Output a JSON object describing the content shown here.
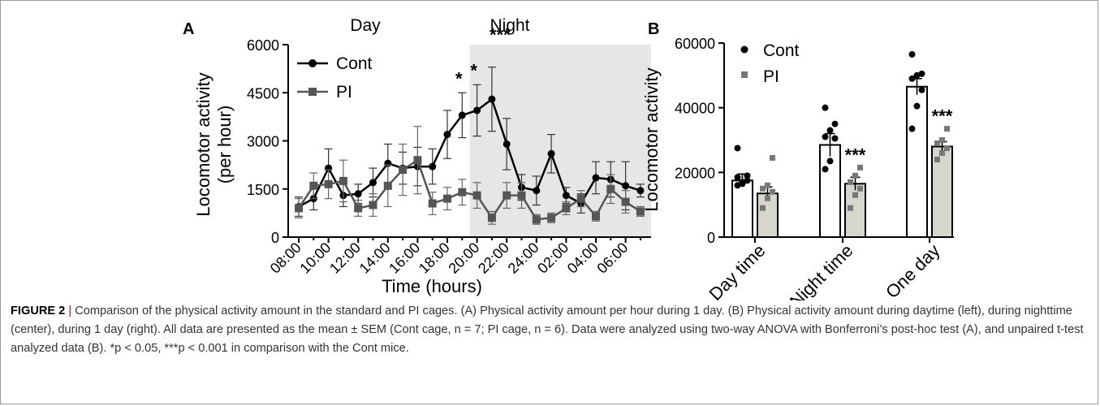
{
  "chart_data": [
    {
      "panel": "A",
      "type": "line",
      "ylabel_line1": "Locomotor activity",
      "ylabel_line2": "(per hour)",
      "xlabel": "Time (hours)",
      "ylim": [
        0,
        6000
      ],
      "yticks": [
        "0",
        "1500",
        "3000",
        "4500",
        "6000"
      ],
      "phase_labels": [
        "Day",
        "Night"
      ],
      "x_categories": [
        "08:00",
        "09:00",
        "10:00",
        "11:00",
        "12:00",
        "13:00",
        "14:00",
        "15:00",
        "16:00",
        "17:00",
        "18:00",
        "19:00",
        "20:00",
        "21:00",
        "22:00",
        "23:00",
        "24:00",
        "01:00",
        "02:00",
        "03:00",
        "04:00",
        "05:00",
        "06:00",
        "07:00"
      ],
      "xtick_labels": [
        "08:00",
        "10:00",
        "12:00",
        "14:00",
        "16:00",
        "18:00",
        "20:00",
        "22:00",
        "24:00",
        "02:00",
        "04:00",
        "06:00"
      ],
      "night_start_index": 12,
      "series": [
        {
          "name": "Cont",
          "color": "#000000",
          "marker": "circle",
          "values": [
            950,
            1200,
            2150,
            1300,
            1350,
            1700,
            2300,
            2150,
            2200,
            2200,
            3200,
            3800,
            3950,
            4300,
            2900,
            1550,
            1450,
            2600,
            1300,
            1050,
            1850,
            1800,
            1600,
            1450
          ],
          "errors": [
            300,
            350,
            600,
            350,
            300,
            450,
            600,
            500,
            600,
            550,
            750,
            700,
            800,
            1000,
            800,
            400,
            450,
            600,
            250,
            300,
            500,
            550,
            750,
            200
          ]
        },
        {
          "name": "PI",
          "color": "#555555",
          "marker": "square",
          "values": [
            900,
            1600,
            1650,
            1750,
            900,
            1000,
            1600,
            2100,
            2400,
            1050,
            1200,
            1400,
            1300,
            600,
            1300,
            1300,
            550,
            600,
            900,
            1200,
            650,
            1500,
            1100,
            800
          ],
          "errors": [
            300,
            400,
            450,
            650,
            250,
            350,
            650,
            800,
            1050,
            350,
            350,
            400,
            400,
            200,
            400,
            400,
            150,
            150,
            200,
            250,
            150,
            450,
            350,
            150
          ]
        }
      ],
      "significance": [
        {
          "index": 11,
          "label": "*"
        },
        {
          "index": 12,
          "label": "*"
        },
        {
          "index": 13,
          "label": "***"
        }
      ]
    },
    {
      "panel": "B",
      "type": "bar",
      "ylabel": "Locomotor activity",
      "ylim": [
        0,
        60000
      ],
      "yticks": [
        "0",
        "20000",
        "40000",
        "60000"
      ],
      "categories": [
        "Day time",
        "Night time",
        "One day"
      ],
      "series": [
        {
          "name": "Cont",
          "color": "#ffffff",
          "point_color": "#000000",
          "values": [
            17500,
            28500,
            46500
          ],
          "errors": [
            2000,
            3500,
            2500
          ],
          "points": [
            [
              16000,
              17000,
              17500,
              18500,
              16500,
              19000,
              27500
            ],
            [
              21000,
              23500,
              30500,
              31000,
              33000,
              35000,
              40000
            ],
            [
              33500,
              40500,
              45500,
              49000,
              50000,
              50500,
              56500
            ]
          ]
        },
        {
          "name": "PI",
          "color": "#d6d6cc",
          "point_color": "#777777",
          "values": [
            13500,
            16500,
            28000
          ],
          "errors": [
            2000,
            2000,
            1500
          ],
          "points": [
            [
              9000,
              12000,
              14000,
              15000,
              16000,
              24500
            ],
            [
              9000,
              13000,
              15000,
              17000,
              19000,
              21500
            ],
            [
              24000,
              26000,
              27500,
              29000,
              30000,
              33500
            ]
          ]
        }
      ],
      "significance": [
        {
          "category": 1,
          "label": "***"
        },
        {
          "category": 2,
          "label": "***"
        }
      ]
    }
  ],
  "caption": {
    "figure_number": "FIGURE 2",
    "separator": " | ",
    "text": "Comparison of the physical activity amount in the standard and PI cages. (A) Physical activity amount per hour during 1 day. (B) Physical activity amount during daytime (left), during nighttime (center), during 1 day (right). All data are presented as the mean ± SEM (Cont cage, n = 7; PI cage, n = 6). Data were analyzed using two-way ANOVA with Bonferroni’s post-hoc test (A), and unpaired t-test analyzed data (B). *p < 0.05, ***p < 0.001 in comparison with the Cont mice."
  }
}
